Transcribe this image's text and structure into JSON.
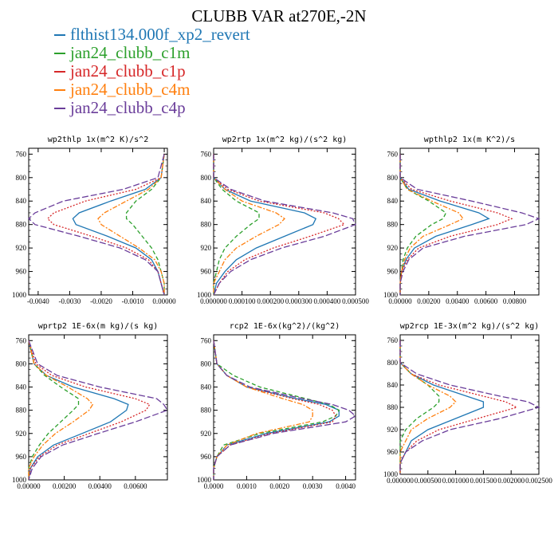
{
  "title": "CLUBB VAR at270E,-2N",
  "legend": [
    {
      "name": "flthist134.000f_xp2_revert",
      "color": "#1f77b4",
      "dash": ""
    },
    {
      "name": "jan24_clubb_c1m",
      "color": "#2ca02c",
      "dash": "5,3"
    },
    {
      "name": "jan24_clubb_c1p",
      "color": "#d62728",
      "dash": "2,2"
    },
    {
      "name": "jan24_clubb_c4m",
      "color": "#ff7f0e",
      "dash": "6,2,2,2"
    },
    {
      "name": "jan24_clubb_c4p",
      "color": "#6a3d9a",
      "dash": "8,3"
    }
  ],
  "chart_data": [
    {
      "type": "line",
      "title": "wp2thlp   1x(m^2 K)/s^2",
      "xlim": [
        -0.0043,
        0.0001
      ],
      "ylim": [
        1000,
        750
      ],
      "xticks": [
        -0.004,
        -0.003,
        -0.002,
        -0.001,
        0.0
      ],
      "xtick_labels": [
        "-0.0040",
        "-0.0030",
        "-0.0020",
        "-0.0010",
        "0.00000"
      ],
      "yticks": [
        760,
        800,
        840,
        880,
        920,
        960,
        1000
      ],
      "y": [
        760,
        800,
        820,
        840,
        860,
        870,
        880,
        900,
        920,
        940,
        960,
        980,
        1000
      ],
      "series": [
        {
          "values": [
            0.0,
            -0.0001,
            -0.0006,
            -0.0017,
            -0.0027,
            -0.0029,
            -0.0028,
            -0.0018,
            -0.0009,
            -0.0004,
            -0.0002,
            -0.0001,
            0.0
          ]
        },
        {
          "values": [
            0.0,
            -0.0001,
            -0.0004,
            -0.0009,
            -0.0012,
            -0.0012,
            -0.001,
            -0.0007,
            -0.0004,
            -0.0002,
            -0.0001,
            0.0,
            0.0
          ]
        },
        {
          "values": [
            0.0,
            -0.0001,
            -0.0009,
            -0.0025,
            -0.0035,
            -0.0037,
            -0.0035,
            -0.0023,
            -0.0012,
            -0.0005,
            -0.0002,
            -0.0001,
            0.0
          ]
        },
        {
          "values": [
            0.0,
            -0.0001,
            -0.0005,
            -0.0012,
            -0.0019,
            -0.0021,
            -0.002,
            -0.0014,
            -0.0008,
            -0.0003,
            -0.0001,
            0.0,
            0.0
          ]
        },
        {
          "values": [
            0.0,
            -0.0002,
            -0.0013,
            -0.0032,
            -0.0041,
            -0.0043,
            -0.0041,
            -0.0027,
            -0.0014,
            -0.0006,
            -0.0002,
            -0.0001,
            0.0
          ]
        }
      ]
    },
    {
      "type": "line",
      "title": "wp2rtp   1x(m^2 kg)/(s^2 kg)",
      "xlim": [
        0.0,
        0.0005
      ],
      "ylim": [
        1000,
        750
      ],
      "xticks": [
        0.0,
        0.0001,
        0.0002,
        0.0003,
        0.0004,
        0.0005
      ],
      "xtick_labels": [
        "0.000000",
        "0.000100",
        "0.000200",
        "0.000300",
        "0.000400",
        "0.000500"
      ],
      "yticks": [
        760,
        800,
        840,
        880,
        920,
        960,
        1000
      ],
      "y": [
        760,
        800,
        820,
        840,
        860,
        870,
        880,
        900,
        920,
        940,
        960,
        980,
        1000
      ],
      "series": [
        {
          "values": [
            0.0,
            0.0,
            4e-05,
            0.00013,
            0.00032,
            0.00036,
            0.00035,
            0.00025,
            0.00015,
            8e-05,
            4e-05,
            1e-05,
            0.0
          ]
        },
        {
          "values": [
            0.0,
            0.0,
            3e-05,
            8e-05,
            0.00016,
            0.00016,
            0.00013,
            8e-05,
            4e-05,
            2e-05,
            1e-05,
            0.0,
            0.0
          ]
        },
        {
          "values": [
            0.0,
            0.0,
            5e-05,
            0.00016,
            0.00039,
            0.00044,
            0.00046,
            0.00034,
            0.00021,
            0.00011,
            5e-05,
            2e-05,
            0.0
          ]
        },
        {
          "values": [
            0.0,
            0.0,
            4e-05,
            0.0001,
            0.00022,
            0.00025,
            0.00023,
            0.00015,
            8e-05,
            4e-05,
            2e-05,
            0.0,
            0.0
          ]
        },
        {
          "values": [
            0.0,
            0.0,
            6e-05,
            0.00018,
            0.00042,
            0.00049,
            0.0005,
            0.00039,
            0.00024,
            0.00013,
            6e-05,
            2e-05,
            0.0
          ]
        }
      ]
    },
    {
      "type": "line",
      "title": "wpthlp2   1x(m K^2)/s",
      "xlim": [
        0.0,
        0.0097
      ],
      "ylim": [
        1000,
        750
      ],
      "xticks": [
        0.0,
        0.002,
        0.004,
        0.006,
        0.008
      ],
      "xtick_labels": [
        "0.00000",
        "0.00200",
        "0.00400",
        "0.00600",
        "0.00800"
      ],
      "yticks": [
        760,
        800,
        840,
        880,
        920,
        960,
        1000
      ],
      "y": [
        760,
        800,
        820,
        840,
        860,
        870,
        880,
        900,
        920,
        940,
        960,
        980,
        1000
      ],
      "series": [
        {
          "values": [
            0.0,
            0.0,
            0.0006,
            0.0028,
            0.0055,
            0.0062,
            0.005,
            0.0025,
            0.001,
            0.0004,
            0.0001,
            0.0,
            0.0
          ]
        },
        {
          "values": [
            0.0,
            0.0,
            0.0005,
            0.002,
            0.0032,
            0.003,
            0.0022,
            0.0011,
            0.0005,
            0.0002,
            0.0001,
            0.0,
            0.0
          ]
        },
        {
          "values": [
            0.0,
            0.0,
            0.0008,
            0.0035,
            0.0068,
            0.0078,
            0.0068,
            0.0035,
            0.0013,
            0.0005,
            0.0001,
            0.0,
            0.0
          ]
        },
        {
          "values": [
            0.0,
            0.0,
            0.0005,
            0.0022,
            0.0041,
            0.0044,
            0.0035,
            0.0016,
            0.0007,
            0.0003,
            0.0001,
            0.0,
            0.0
          ]
        },
        {
          "values": [
            0.0,
            0.0,
            0.0012,
            0.005,
            0.0085,
            0.0097,
            0.0088,
            0.0045,
            0.0016,
            0.0006,
            0.0002,
            0.0,
            0.0
          ]
        }
      ]
    },
    {
      "type": "line",
      "title": "wprtp2   1E-6x(m kg)/(s kg)",
      "xlim": [
        0.0,
        0.0078
      ],
      "ylim": [
        1000,
        750
      ],
      "xticks": [
        0.0,
        0.002,
        0.004,
        0.006
      ],
      "xtick_labels": [
        "0.00000",
        "0.00200",
        "0.00400",
        "0.00600"
      ],
      "yticks": [
        760,
        800,
        840,
        880,
        920,
        960,
        1000
      ],
      "y": [
        760,
        800,
        820,
        840,
        860,
        870,
        880,
        900,
        920,
        940,
        960,
        980,
        1000
      ],
      "series": [
        {
          "values": [
            0.0,
            0.0003,
            0.001,
            0.0025,
            0.0048,
            0.0056,
            0.0055,
            0.0046,
            0.003,
            0.0014,
            0.0005,
            0.0001,
            0.0
          ]
        },
        {
          "values": [
            0.0,
            0.0003,
            0.0009,
            0.0018,
            0.0028,
            0.0028,
            0.0025,
            0.0018,
            0.0011,
            0.0006,
            0.0002,
            0.0,
            0.0
          ]
        },
        {
          "values": [
            0.0,
            0.0004,
            0.0013,
            0.0032,
            0.006,
            0.0068,
            0.0066,
            0.0052,
            0.0034,
            0.0016,
            0.0006,
            0.0001,
            0.0
          ]
        },
        {
          "values": [
            0.0,
            0.0003,
            0.001,
            0.0022,
            0.0033,
            0.0036,
            0.0034,
            0.0025,
            0.0015,
            0.0008,
            0.0003,
            0.0,
            0.0
          ]
        },
        {
          "values": [
            0.0,
            0.0005,
            0.0016,
            0.004,
            0.0072,
            0.0076,
            0.0078,
            0.006,
            0.0039,
            0.0019,
            0.0007,
            0.0002,
            0.0
          ]
        }
      ]
    },
    {
      "type": "line",
      "title": "rcp2   1E-6x(kg^2)/(kg^2)",
      "xlim": [
        0.0,
        0.0043
      ],
      "ylim": [
        1000,
        750
      ],
      "xticks": [
        0.0,
        0.001,
        0.002,
        0.003,
        0.004
      ],
      "xtick_labels": [
        "0.0000",
        "0.0010",
        "0.0020",
        "0.0030",
        "0.0040"
      ],
      "yticks": [
        760,
        800,
        840,
        880,
        920,
        960,
        1000
      ],
      "y": [
        760,
        800,
        820,
        840,
        860,
        870,
        880,
        890,
        900,
        920,
        940,
        960,
        980,
        1000
      ],
      "series": [
        {
          "values": [
            0.0,
            0.0001,
            0.0004,
            0.001,
            0.0025,
            0.0034,
            0.0038,
            0.0038,
            0.0035,
            0.0016,
            0.0004,
            0.0001,
            0.0,
            0.0
          ]
        },
        {
          "values": [
            0.0,
            0.0001,
            0.0006,
            0.0014,
            0.0028,
            0.0035,
            0.0038,
            0.0037,
            0.0033,
            0.0014,
            0.0003,
            0.0001,
            0.0,
            0.0
          ]
        },
        {
          "values": [
            0.0,
            0.0001,
            0.0004,
            0.001,
            0.0024,
            0.0032,
            0.0036,
            0.0037,
            0.0036,
            0.0017,
            0.0005,
            0.0001,
            0.0,
            0.0
          ]
        },
        {
          "values": [
            0.0,
            0.0001,
            0.0004,
            0.001,
            0.0021,
            0.0027,
            0.003,
            0.003,
            0.0029,
            0.0013,
            0.0004,
            0.0001,
            0.0,
            0.0
          ]
        },
        {
          "values": [
            0.0,
            0.0001,
            0.0004,
            0.0011,
            0.0027,
            0.0036,
            0.0041,
            0.0043,
            0.004,
            0.0018,
            0.0005,
            0.0001,
            0.0,
            0.0
          ]
        }
      ]
    },
    {
      "type": "line",
      "title": "wp2rcp   1E-3x(m^2 kg)/(s^2 kg)",
      "xlim": [
        0.0,
        0.0025
      ],
      "ylim": [
        1000,
        750
      ],
      "xticks": [
        0.0,
        0.0005,
        0.001,
        0.0015,
        0.002,
        0.0025
      ],
      "xtick_labels": [
        "0.000000",
        "0.000500",
        "0.001000",
        "0.001500",
        "0.002000",
        "0.002500"
      ],
      "yticks": [
        760,
        800,
        840,
        880,
        920,
        960,
        1000
      ],
      "y": [
        760,
        800,
        820,
        840,
        860,
        870,
        880,
        900,
        920,
        940,
        960,
        980,
        1000
      ],
      "series": [
        {
          "values": [
            0.0,
            0.0,
            0.0002,
            0.0006,
            0.0012,
            0.0015,
            0.0015,
            0.001,
            0.0005,
            0.0002,
            0.0001,
            0.0,
            0.0
          ]
        },
        {
          "values": [
            0.0,
            0.0,
            0.0002,
            0.0005,
            0.0007,
            0.0007,
            0.0006,
            0.0003,
            0.0001,
            0.0,
            0.0,
            0.0,
            0.0
          ]
        },
        {
          "values": [
            0.0,
            0.0,
            0.0002,
            0.0007,
            0.0015,
            0.0019,
            0.0021,
            0.0014,
            0.0007,
            0.0003,
            0.0001,
            0.0,
            0.0
          ]
        },
        {
          "values": [
            0.0,
            0.0,
            0.0002,
            0.0005,
            0.0009,
            0.001,
            0.0009,
            0.0005,
            0.0002,
            0.0001,
            0.0,
            0.0,
            0.0
          ]
        },
        {
          "values": [
            0.0,
            0.0,
            0.0003,
            0.0009,
            0.0018,
            0.0023,
            0.0025,
            0.0018,
            0.0009,
            0.0004,
            0.0001,
            0.0,
            0.0
          ]
        }
      ]
    }
  ]
}
